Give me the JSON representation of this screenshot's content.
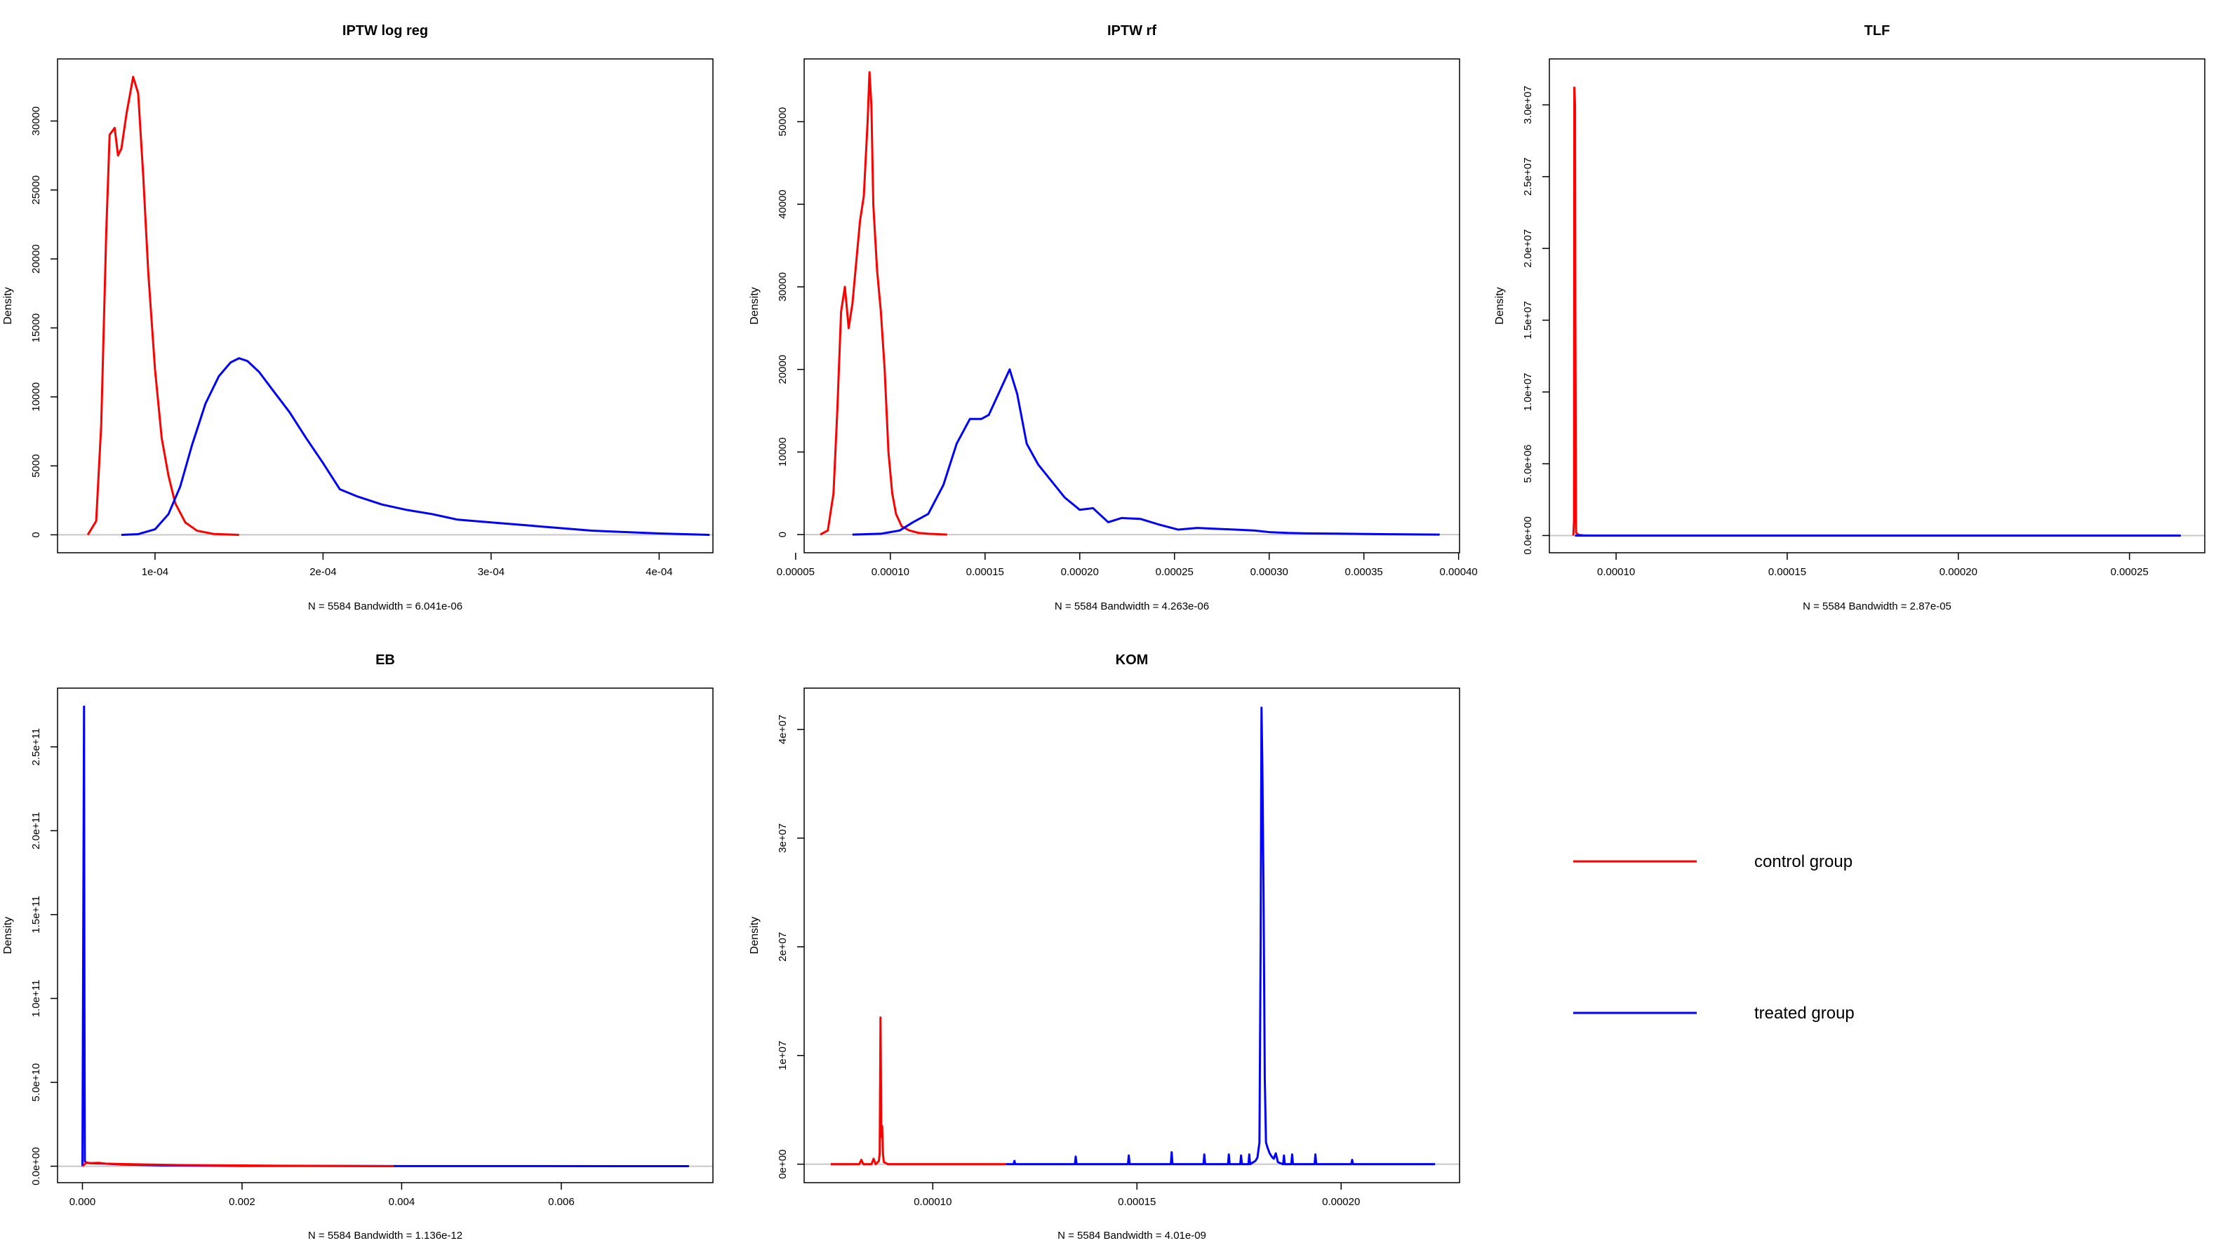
{
  "figure": {
    "colors": {
      "control": "#ff0000",
      "treated": "#0000ff",
      "baseline": "#c8c8c8",
      "frame": "#000000"
    },
    "legend": {
      "items": [
        {
          "label": "control group",
          "color": "#ff0000"
        },
        {
          "label": "treated group",
          "color": "#0000ff"
        }
      ]
    }
  },
  "chart_data": [
    {
      "type": "line",
      "title": "IPTW log reg",
      "xlabel": "N = 5584   Bandwidth = 6.041e-06",
      "ylabel": "Density",
      "xlim": [
        4.2e-05,
        0.000432
      ],
      "ylim": [
        -1300,
        34500
      ],
      "xticks": [
        0.0001,
        0.0002,
        0.0003,
        0.0004
      ],
      "xtick_labels": [
        "1e-04",
        "2e-04",
        "3e-04",
        "4e-04"
      ],
      "yticks": [
        0,
        5000,
        10000,
        15000,
        20000,
        25000,
        30000
      ],
      "ytick_labels": [
        "0",
        "5000",
        "10000",
        "15000",
        "20000",
        "25000",
        "30000"
      ],
      "series": [
        {
          "name": "control group",
          "color": "#ff0000",
          "x": [
            6e-05,
            6.5e-05,
            6.8e-05,
            7.1e-05,
            7.3e-05,
            7.6e-05,
            7.8e-05,
            8e-05,
            8.3e-05,
            8.7e-05,
            9e-05,
            9.3e-05,
            9.6e-05,
            0.0001,
            0.000104,
            0.000108,
            0.000112,
            0.000118,
            0.000125,
            0.000135,
            0.00015
          ],
          "y": [
            0,
            1000,
            8000,
            22000,
            29000,
            29500,
            27500,
            28000,
            30500,
            33200,
            32000,
            26000,
            19000,
            12000,
            7000,
            4300,
            2300,
            900,
            300,
            60,
            0
          ]
        },
        {
          "name": "treated group",
          "color": "#0000ff",
          "x": [
            8e-05,
            9e-05,
            0.0001,
            0.000108,
            0.000115,
            0.000122,
            0.00013,
            0.000138,
            0.000145,
            0.00015,
            0.000155,
            0.000162,
            0.00017,
            0.00018,
            0.00019,
            0.0002,
            0.00021,
            0.00022,
            0.000235,
            0.00025,
            0.000265,
            0.00028,
            0.0003,
            0.00032,
            0.00034,
            0.00036,
            0.00038,
            0.0004,
            0.00043
          ],
          "y": [
            0,
            50,
            400,
            1500,
            3500,
            6500,
            9500,
            11500,
            12500,
            12800,
            12600,
            11800,
            10500,
            8900,
            7000,
            5200,
            3300,
            2800,
            2200,
            1800,
            1500,
            1100,
            900,
            700,
            500,
            300,
            200,
            100,
            0
          ]
        }
      ]
    },
    {
      "type": "line",
      "title": "IPTW rf",
      "xlabel": "N = 5584   Bandwidth = 4.263e-06",
      "ylabel": "Density",
      "xlim": [
        5.45e-05,
        0.0004005
      ],
      "ylim": [
        -2200,
        57600
      ],
      "xticks": [
        5e-05,
        0.0001,
        0.00015,
        0.0002,
        0.00025,
        0.0003,
        0.00035,
        0.0004
      ],
      "xtick_labels": [
        "0.00005",
        "0.00010",
        "0.00015",
        "0.00020",
        "0.00025",
        "0.00030",
        "0.00035",
        "0.00040"
      ],
      "yticks": [
        0,
        10000,
        20000,
        30000,
        40000,
        50000
      ],
      "ytick_labels": [
        "0",
        "10000",
        "20000",
        "30000",
        "40000",
        "50000"
      ],
      "series": [
        {
          "name": "control group",
          "color": "#ff0000",
          "x": [
            6.3e-05,
            6.7e-05,
            7e-05,
            7.2e-05,
            7.4e-05,
            7.6e-05,
            7.8e-05,
            8e-05,
            8.2e-05,
            8.4e-05,
            8.6e-05,
            8.8e-05,
            8.9e-05,
            9e-05,
            9.1e-05,
            9.3e-05,
            9.5e-05,
            9.7e-05,
            9.9e-05,
            0.000101,
            0.000103,
            0.000106,
            0.00011,
            0.000115,
            0.00012,
            0.00013
          ],
          "y": [
            0,
            500,
            5000,
            15000,
            27000,
            30000,
            25000,
            28000,
            33000,
            38000,
            41000,
            50000,
            56000,
            52000,
            40000,
            32000,
            27000,
            20000,
            10000,
            5000,
            2500,
            1000,
            500,
            200,
            100,
            0
          ]
        },
        {
          "name": "treated group",
          "color": "#0000ff",
          "x": [
            8e-05,
            9.5e-05,
            0.000105,
            0.000112,
            0.00012,
            0.000128,
            0.000135,
            0.000142,
            0.000148,
            0.000152,
            0.000158,
            0.000163,
            0.000167,
            0.000172,
            0.000178,
            0.000185,
            0.000192,
            0.0002,
            0.000207,
            0.000215,
            0.000222,
            0.000232,
            0.000242,
            0.000252,
            0.000262,
            0.000272,
            0.000282,
            0.000292,
            0.0003,
            0.00031,
            0.00032,
            0.00034,
            0.00036,
            0.00039
          ],
          "y": [
            0,
            100,
            500,
            1500,
            2500,
            6000,
            11000,
            14000,
            14000,
            14500,
            17500,
            20000,
            17000,
            11000,
            8500,
            6500,
            4500,
            3000,
            3200,
            1500,
            2000,
            1900,
            1200,
            600,
            800,
            700,
            600,
            500,
            300,
            200,
            150,
            100,
            50,
            0
          ]
        }
      ]
    },
    {
      "type": "line",
      "title": "TLF",
      "xlabel": "N = 5584   Bandwidth = 2.87e-05",
      "ylabel": "Density",
      "xlim": [
        8.05e-05,
        0.000272
      ],
      "ylim": [
        -1200000,
        33200000
      ],
      "xticks": [
        0.0001,
        0.00015,
        0.0002,
        0.00025
      ],
      "xtick_labels": [
        "0.00010",
        "0.00015",
        "0.00020",
        "0.00025"
      ],
      "yticks": [
        0,
        5000000,
        10000000,
        15000000,
        20000000,
        25000000,
        30000000
      ],
      "ytick_labels": [
        "0.0e+00",
        "5.0e+06",
        "1.0e+07",
        "1.5e+07",
        "2.0e+07",
        "2.5e+07",
        "3.0e+07"
      ],
      "series": [
        {
          "name": "control group",
          "color": "#ff0000",
          "x": [
            8.75e-05,
            8.77e-05,
            8.78e-05,
            8.8e-05,
            8.81e-05,
            8.83e-05,
            8.9e-05,
            9.05e-05,
            9.3e-05
          ],
          "y": [
            0,
            1000000,
            31200000,
            30000000,
            15000000,
            200000,
            50000,
            10000,
            0
          ]
        },
        {
          "name": "treated group",
          "color": "#0000ff",
          "x": [
            8.8e-05,
            9.2e-05,
            0.0001,
            0.00015,
            0.0002,
            0.000265
          ],
          "y": [
            0,
            0,
            0,
            0,
            0,
            0
          ]
        }
      ]
    },
    {
      "type": "line",
      "title": "EB",
      "xlabel": "N = 5584   Bandwidth = 1.136e-12",
      "ylabel": "Density",
      "xlim": [
        -0.000312,
        0.0079
      ],
      "ylim": [
        -9800000000,
        285000000000
      ],
      "xticks": [
        0,
        0.002,
        0.004,
        0.006
      ],
      "xtick_labels": [
        "0.000",
        "0.002",
        "0.004",
        "0.006"
      ],
      "yticks": [
        0,
        50000000000,
        100000000000,
        150000000000,
        200000000000,
        250000000000
      ],
      "ytick_labels": [
        "0.0e+00",
        "5.0e+10",
        "1.0e+11",
        "1.5e+11",
        "2.0e+11",
        "2.5e+11"
      ],
      "series": [
        {
          "name": "treated group",
          "color": "#0000ff",
          "x": [
            0,
            1e-05,
            2e-05,
            2.5e-05,
            3e-05,
            4e-05,
            6e-05,
            0.0001,
            0.0003,
            0.0005,
            0.001,
            0.002,
            0.004,
            0.0076
          ],
          "y": [
            0,
            135000000000,
            274000000000,
            100000000000,
            3000000000,
            2500000000,
            2000000000,
            1800000000,
            1500000000,
            1000000000,
            500000000,
            200000000,
            100000000,
            0
          ]
        },
        {
          "name": "control group",
          "color": "#ff0000",
          "x": [
            0,
            5e-05,
            0.0001,
            0.0002,
            0.0003,
            0.0005,
            0.0008,
            0.0012,
            0.0018,
            0.0025,
            0.0032,
            0.0039
          ],
          "y": [
            0,
            2200000000,
            1800000000,
            2000000000,
            1500000000,
            1300000000,
            1000000000,
            700000000,
            500000000,
            300000000,
            200000000,
            0
          ]
        }
      ]
    },
    {
      "type": "line",
      "title": "KOM",
      "xlabel": "N = 5584   Bandwidth = 4.01e-09",
      "ylabel": "Density",
      "xlim": [
        6.85e-05,
        0.000229
      ],
      "ylim": [
        -1700000,
        43800000
      ],
      "xticks": [
        0.0001,
        0.00015,
        0.0002
      ],
      "xtick_labels": [
        "0.00010",
        "0.00015",
        "0.00020"
      ],
      "yticks": [
        0,
        10000000,
        20000000,
        30000000,
        40000000
      ],
      "ytick_labels": [
        "0e+00",
        "1e+07",
        "2e+07",
        "3e+07",
        "4e+07"
      ],
      "series": [
        {
          "name": "control group",
          "color": "#ff0000",
          "x": [
            7.5e-05,
            8e-05,
            8.2e-05,
            8.25e-05,
            8.3e-05,
            8.5e-05,
            8.55e-05,
            8.6e-05,
            8.68e-05,
            8.7e-05,
            8.72e-05,
            8.74e-05,
            8.76e-05,
            8.78e-05,
            8.8e-05,
            8.85e-05,
            8.9e-05,
            9.5e-05,
            0.0001,
            0.000105,
            0.000118
          ],
          "y": [
            0,
            0,
            0,
            400000,
            0,
            0,
            500000,
            0,
            300000,
            1000000,
            13500000,
            2500000,
            3500000,
            1000000,
            200000,
            100000,
            0,
            0,
            0,
            0,
            0
          ]
        },
        {
          "name": "treated group",
          "color": "#0000ff",
          "x": [
            0.000118,
            0.0001198,
            0.00012,
            0.0001202,
            0.0001348,
            0.000135,
            0.0001352,
            0.0001478,
            0.000148,
            0.0001482,
            0.0001583,
            0.0001585,
            0.0001587,
            0.0001663,
            0.0001665,
            0.0001667,
            0.0001723,
            0.0001725,
            0.0001727,
            0.0001753,
            0.0001755,
            0.0001757,
            0.0001773,
            0.0001775,
            0.0001777,
            0.000179,
            0.0001795,
            0.00018,
            0.0001803,
            0.0001805,
            0.0001807,
            0.000181,
            0.0001813,
            0.0001816,
            0.000182,
            0.0001825,
            0.000183,
            0.0001835,
            0.000184,
            0.0001845,
            0.000185,
            0.0001858,
            0.000186,
            0.0001862,
            0.0001878,
            0.000188,
            0.0001882,
            0.0001935,
            0.0001937,
            0.0001939,
            0.0002025,
            0.0002027,
            0.0002029,
            0.000223
          ],
          "y": [
            0,
            0,
            300000,
            0,
            0,
            700000,
            0,
            0,
            800000,
            0,
            0,
            1100000,
            0,
            0,
            900000,
            0,
            0,
            900000,
            0,
            0,
            800000,
            0,
            0,
            900000,
            0,
            300000,
            600000,
            2000000,
            21000000,
            42000000,
            37000000,
            25000000,
            8000000,
            2000000,
            1500000,
            1000000,
            700000,
            500000,
            1000000,
            200000,
            100000,
            0,
            800000,
            0,
            0,
            900000,
            0,
            0,
            900000,
            0,
            0,
            400000,
            0,
            0
          ]
        }
      ]
    }
  ]
}
